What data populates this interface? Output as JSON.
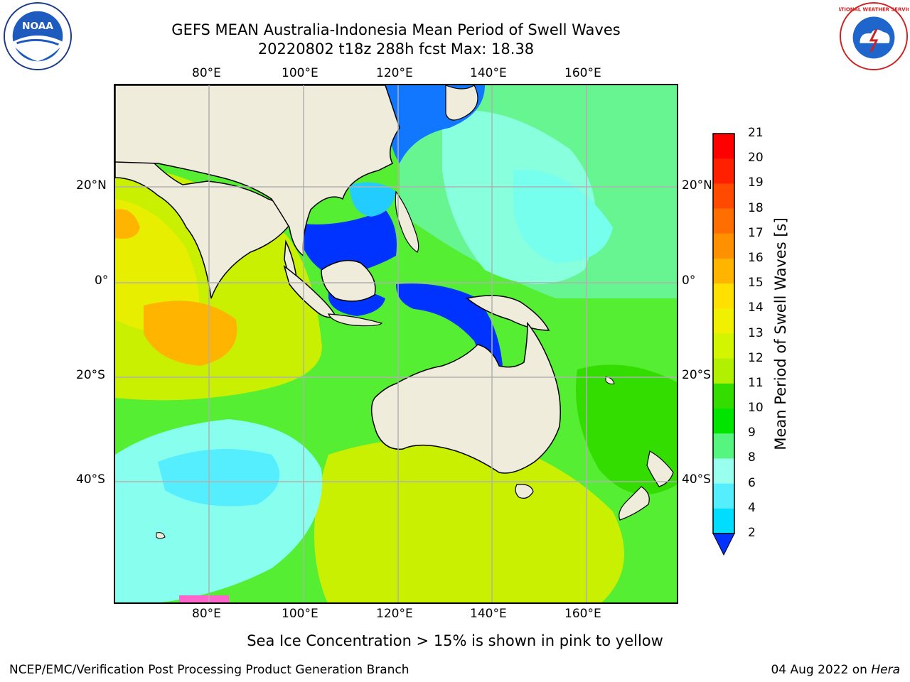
{
  "header": {
    "title_line1": "GEFS MEAN Australia-Indonesia Mean Period of Swell Waves",
    "title_line2": "20220802 t18z 288h fcst   Max: 18.38"
  },
  "logos": {
    "left": "noaa-logo",
    "left_text": "NOAA",
    "right": "nws-logo",
    "right_text": "NATIONAL WEATHER SERVICE"
  },
  "axes": {
    "top_lon": [
      "80°E",
      "100°E",
      "120°E",
      "140°E",
      "160°E"
    ],
    "bottom_lon": [
      "80°E",
      "100°E",
      "120°E",
      "140°E",
      "160°E"
    ],
    "left_lat": [
      "20°N",
      "0°",
      "20°S",
      "40°S"
    ],
    "right_lat": [
      "20°N",
      "0°",
      "20°S",
      "40°S"
    ]
  },
  "colorbar": {
    "title": "Mean Period of Swell Waves [s]",
    "labels": [
      "21",
      "20",
      "19",
      "18",
      "17",
      "16",
      "15",
      "14",
      "13",
      "12",
      "11",
      "10",
      "9",
      "8",
      "6",
      "4",
      "2"
    ],
    "colors": [
      "#ff0000",
      "#ff2000",
      "#ff4a00",
      "#ff6e00",
      "#ff9000",
      "#ffb400",
      "#ffe000",
      "#f0f000",
      "#d4f500",
      "#b0f000",
      "#33dd00",
      "#00e400",
      "#55f580",
      "#99ffee",
      "#55eeff",
      "#00ddff",
      "#0077ff"
    ],
    "extend_color": "#0033ff"
  },
  "footer": {
    "note": "Sea Ice Concentration > 15% is shown in pink to yellow",
    "credit": "NCEP/EMC/Verification Post Processing Product Generation Branch",
    "date": "04 Aug 2022 on ",
    "machine": "Hera"
  },
  "map_colors": {
    "land": "#f0ecdc",
    "grid": "#b0b0b0",
    "ocean_green": "#55ee33",
    "ocean_yellow": "#d8f000",
    "ocean_orange": "#ffaa00",
    "ocean_cyan": "#66ffee",
    "ocean_blue": "#0033ff"
  }
}
